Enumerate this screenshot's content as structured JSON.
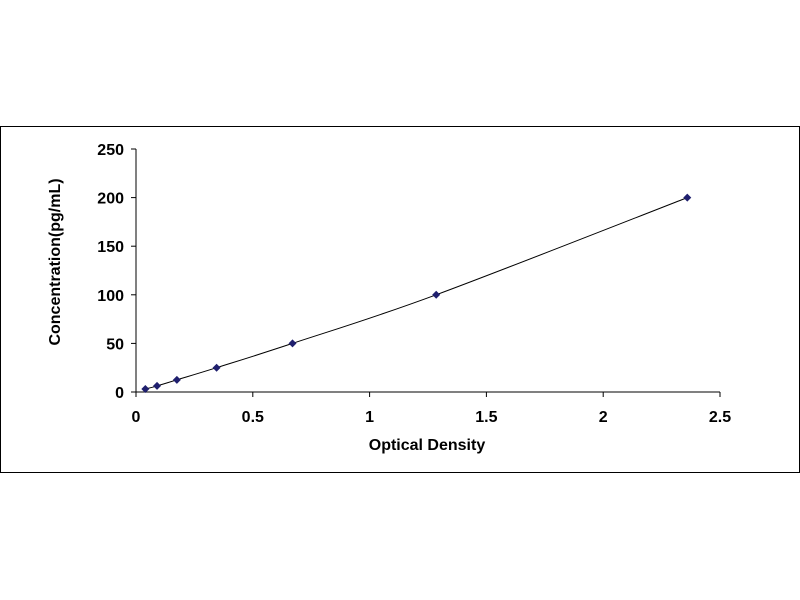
{
  "chart_data": {
    "type": "scatter",
    "title": "",
    "xlabel": "Optical Density",
    "ylabel": "Concentration(pg/mL)",
    "xlim": [
      0,
      2.5
    ],
    "ylim": [
      0,
      250
    ],
    "x_ticks": [
      "0",
      "0.5",
      "1",
      "1.5",
      "2",
      "2.5"
    ],
    "y_ticks": [
      "0",
      "50",
      "100",
      "150",
      "200",
      "250"
    ],
    "grid": false,
    "legend": "none",
    "marker_color": "#1f1f6e",
    "line_color": "#000000",
    "series": [
      {
        "x": [
          0.04,
          0.09,
          0.175,
          0.345,
          0.67,
          1.285,
          2.36
        ],
        "y": [
          3.125,
          6.25,
          12.5,
          25,
          50,
          100,
          200
        ]
      }
    ]
  }
}
